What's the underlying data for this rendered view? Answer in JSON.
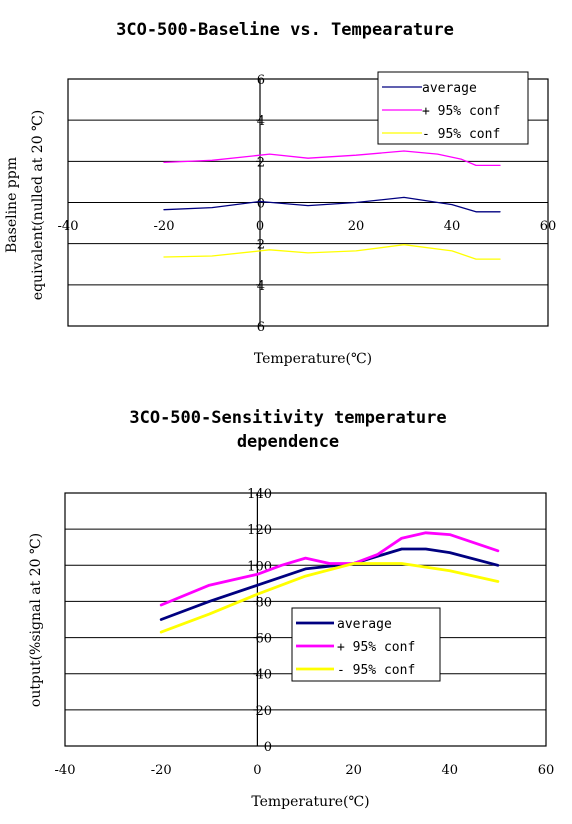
{
  "chart_data": [
    {
      "type": "line",
      "title": "3CO-500-Baseline vs. Tempearature",
      "xlabel": "Temperature(℃)",
      "ylabel": "Baseline ppm\nequivalent(nulled at 20 ℃)",
      "xlim": [
        -40,
        60
      ],
      "ylim": [
        -6,
        6
      ],
      "x_ticks": [
        "-40",
        "-20",
        "0",
        "20",
        "40",
        "60"
      ],
      "y_ticks": [
        "6",
        "4",
        "2",
        "0",
        "2",
        "4",
        "6"
      ],
      "grid": "horizontal",
      "legend_position": "top-right",
      "series": [
        {
          "name": "average",
          "color": "#000080",
          "x": [
            -20,
            -10,
            0,
            10,
            20,
            30,
            40,
            45,
            50
          ],
          "y": [
            -0.35,
            -0.25,
            0.05,
            -0.15,
            0.0,
            0.25,
            -0.1,
            -0.45,
            -0.45
          ]
        },
        {
          "name": "+ 95% conf",
          "color": "#ff00ff",
          "x": [
            -20,
            -10,
            0,
            2,
            10,
            20,
            30,
            37,
            42,
            45,
            50
          ],
          "y": [
            1.95,
            2.05,
            2.3,
            2.35,
            2.15,
            2.3,
            2.5,
            2.35,
            2.1,
            1.8,
            1.8
          ]
        },
        {
          "name": "- 95% conf",
          "color": "#ffff00",
          "x": [
            -20,
            -10,
            0,
            2,
            10,
            20,
            30,
            40,
            45,
            50
          ],
          "y": [
            -2.65,
            -2.6,
            -2.35,
            -2.3,
            -2.45,
            -2.35,
            -2.05,
            -2.35,
            -2.75,
            -2.75
          ]
        }
      ]
    },
    {
      "type": "line",
      "title": "3CO-500-Sensitivity temperature\ndependence",
      "xlabel": "Temperature(℃)",
      "ylabel": "output(%signal at 20 ℃)",
      "xlim": [
        -40,
        60
      ],
      "ylim": [
        0,
        140
      ],
      "x_ticks": [
        "-40",
        "-20",
        "0",
        "20",
        "40",
        "60"
      ],
      "y_ticks": [
        "140",
        "120",
        "100",
        "80",
        "60",
        "40",
        "20",
        "0"
      ],
      "grid": "horizontal",
      "legend_position": "center-right",
      "series": [
        {
          "name": "average",
          "color": "#000080",
          "x": [
            -20,
            -10,
            0,
            10,
            20,
            30,
            35,
            40,
            50
          ],
          "y": [
            70,
            80,
            89,
            98,
            101,
            109,
            109,
            107,
            100
          ]
        },
        {
          "name": "+ 95% conf",
          "color": "#ff00ff",
          "x": [
            -20,
            -10,
            -5,
            0,
            5,
            10,
            15,
            20,
            25,
            30,
            35,
            40,
            50
          ],
          "y": [
            78,
            89,
            92,
            95,
            100,
            104,
            101,
            101,
            106,
            115,
            118,
            117,
            108
          ]
        },
        {
          "name": "- 95% conf",
          "color": "#ffff00",
          "x": [
            -20,
            -10,
            0,
            10,
            20,
            30,
            40,
            50
          ],
          "y": [
            63,
            73,
            84,
            94,
            101,
            101,
            97,
            91
          ]
        }
      ]
    }
  ]
}
